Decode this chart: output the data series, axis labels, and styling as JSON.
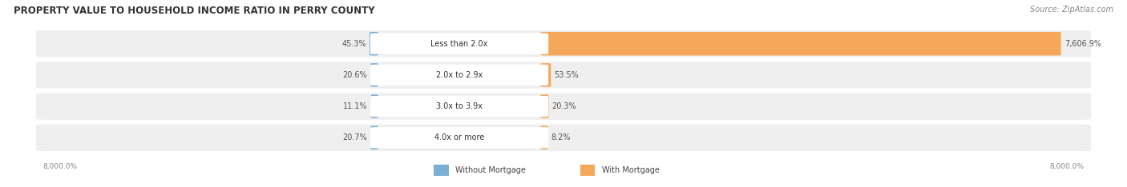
{
  "title": "PROPERTY VALUE TO HOUSEHOLD INCOME RATIO IN PERRY COUNTY",
  "source": "Source: ZipAtlas.com",
  "categories": [
    "Less than 2.0x",
    "2.0x to 2.9x",
    "3.0x to 3.9x",
    "4.0x or more"
  ],
  "without_mortgage": [
    45.3,
    20.6,
    11.1,
    20.7
  ],
  "with_mortgage": [
    7606.9,
    53.5,
    20.3,
    8.2
  ],
  "color_without": "#7bafd4",
  "color_with": "#f5a85a",
  "bg_bar": "#efefef",
  "bg_figure": "#ffffff",
  "x_left_label": "8,000.0%",
  "x_right_label": "8,000.0%",
  "legend_without": "Without Mortgage",
  "legend_with": "With Mortgage",
  "max_scale": 8000.0,
  "title_fontsize": 8.5,
  "label_fontsize": 7.0,
  "source_fontsize": 7.0
}
